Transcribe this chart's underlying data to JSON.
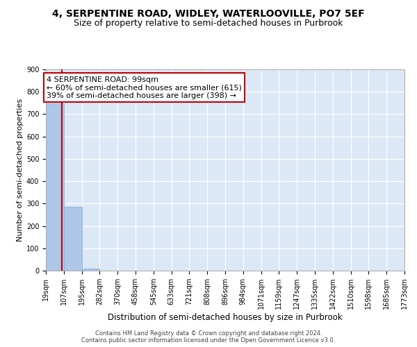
{
  "title": "4, SERPENTINE ROAD, WIDLEY, WATERLOOVILLE, PO7 5EF",
  "subtitle": "Size of property relative to semi-detached houses in Purbrook",
  "xlabel": "Distribution of semi-detached houses by size in Purbrook",
  "ylabel": "Number of semi-detached properties",
  "footer_line1": "Contains HM Land Registry data © Crown copyright and database right 2024.",
  "footer_line2": "Contains public sector information licensed under the Open Government Licence v3.0.",
  "annotation_title": "4 SERPENTINE ROAD: 99sqm",
  "annotation_line2": "← 60% of semi-detached houses are smaller (615)",
  "annotation_line3": "39% of semi-detached houses are larger (398) →",
  "property_size_sqm": 99,
  "bin_edges": [
    19,
    107,
    195,
    282,
    370,
    458,
    545,
    633,
    721,
    808,
    896,
    984,
    1071,
    1159,
    1247,
    1335,
    1422,
    1510,
    1598,
    1685,
    1773
  ],
  "bin_labels": [
    "19sqm",
    "107sqm",
    "195sqm",
    "282sqm",
    "370sqm",
    "458sqm",
    "545sqm",
    "633sqm",
    "721sqm",
    "808sqm",
    "896sqm",
    "984sqm",
    "1071sqm",
    "1159sqm",
    "1247sqm",
    "1335sqm",
    "1422sqm",
    "1510sqm",
    "1598sqm",
    "1685sqm",
    "1773sqm"
  ],
  "bar_heights": [
    748,
    285,
    10,
    0,
    0,
    0,
    0,
    0,
    0,
    0,
    0,
    0,
    0,
    0,
    0,
    0,
    0,
    0,
    0,
    0
  ],
  "bar_color": "#aec6e8",
  "marker_line_color": "#c00000",
  "background_color": "#dce8f5",
  "grid_color": "#ffffff",
  "ylim": [
    0,
    900
  ],
  "yticks": [
    0,
    100,
    200,
    300,
    400,
    500,
    600,
    700,
    800,
    900
  ],
  "title_fontsize": 10,
  "subtitle_fontsize": 9,
  "annotation_box_color": "#c00000",
  "annotation_fontsize": 8,
  "ylabel_fontsize": 8,
  "xlabel_fontsize": 8.5,
  "tick_fontsize": 7,
  "footer_fontsize": 6,
  "figsize": [
    6.0,
    5.0
  ],
  "dpi": 100
}
